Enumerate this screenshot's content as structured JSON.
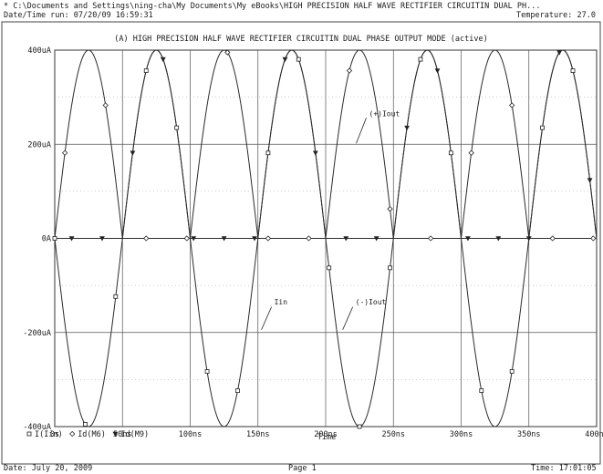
{
  "header": {
    "path": "* C:\\Documents and Settings\\ning-cha\\My Documents\\My eBooks\\HIGH PRECISION HALF WAVE RECTIFIER CIRCUITIN DUAL PH...",
    "datetime": "Date/Time run: 07/20/09 16:59:31",
    "temperature": "Temperature: 27.0"
  },
  "footer": {
    "date": "Date: July 20, 2009",
    "page": "Page 1",
    "time": "Time: 17:01:05"
  },
  "chart_data": {
    "type": "line",
    "title": "(A) HIGH PRECISION HALF WAVE RECTIFIER CIRCUITIN DUAL PHASE OUTPUT MODE (active)",
    "xlabel": "Time",
    "ylabel": "",
    "x_ticks": [
      "0s",
      "50ns",
      "100ns",
      "150ns",
      "200ns",
      "250ns",
      "300ns",
      "350ns",
      "400ns"
    ],
    "y_ticks": [
      "400uA",
      "200uA",
      "0A",
      "-200uA",
      "-400uA"
    ],
    "xlim": [
      0,
      400
    ],
    "ylim": [
      -400,
      400
    ],
    "x_unit": "ns",
    "y_unit": "uA",
    "grid": true,
    "legend_position": "bottom-left",
    "sine": {
      "amplitude": 400,
      "period": 100
    },
    "series": [
      {
        "name": "I(Iin)",
        "marker": "square",
        "formula": "-400*sin(2*pi*t/100)"
      },
      {
        "name": "Id(M6)",
        "marker": "diamond",
        "formula": "max(0, 400*sin(2*pi*t/100))"
      },
      {
        "name": "Id(M9)",
        "marker": "triangle-down",
        "formula": "max(0, -400*sin(2*pi*t/100))"
      }
    ],
    "annotations": [
      {
        "text": "(+)Iout",
        "x": 232,
        "y": 260
      },
      {
        "text": "Iin",
        "x": 162,
        "y": -140
      },
      {
        "text": "(-)Iout",
        "x": 222,
        "y": -140
      }
    ]
  }
}
